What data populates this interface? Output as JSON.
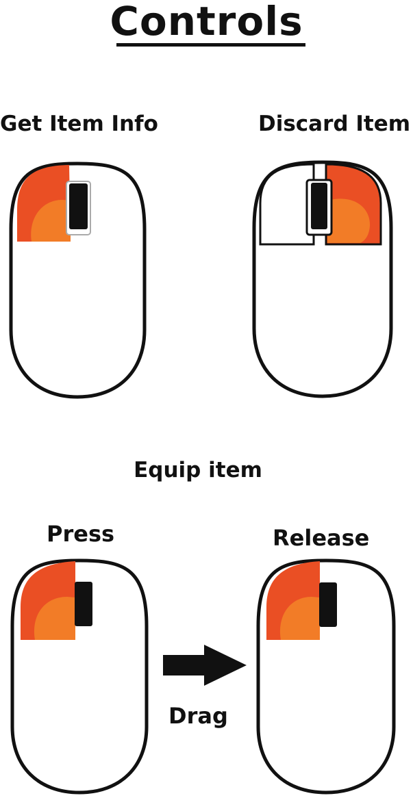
{
  "title": "Controls",
  "panels": {
    "get_info": {
      "label": "Get Item Info"
    },
    "discard": {
      "label": "Discard Item"
    },
    "equip": {
      "label": "Equip item",
      "press_label": "Press",
      "release_label": "Release",
      "drag_label": "Drag"
    }
  },
  "colors": {
    "button_outer": "#ea4f24",
    "button_inner": "#f27c27",
    "outline": "#111111",
    "mouse_body": "#ffffff",
    "scroll_wheel": "#111111"
  },
  "icons": [
    "mouse-icon",
    "scroll-wheel-icon",
    "right-arrow-icon"
  ]
}
